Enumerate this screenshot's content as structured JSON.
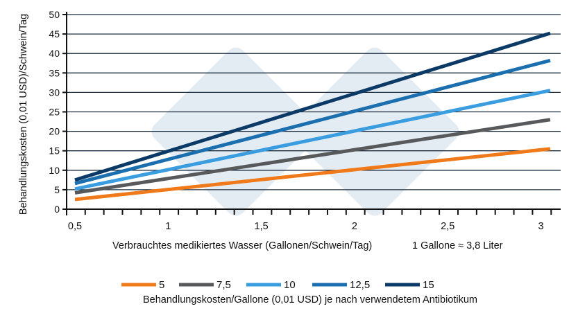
{
  "chart_data": {
    "type": "line",
    "title": "",
    "xlabel": "Verbrauchtes medikiertes Wasser (Gallonen/Schwein/Tag)",
    "xnote": "1 Gallone ≈ 3,8 Liter",
    "ylabel": "Behandlungskosten (0,01 USD)/Schwein/Tag",
    "xlim": [
      0.5,
      3.1
    ],
    "ylim": [
      0,
      50
    ],
    "x_ticks": [
      {
        "v": 0.5,
        "label": "0,5"
      },
      {
        "v": 1,
        "label": "1"
      },
      {
        "v": 1.5,
        "label": "1,5"
      },
      {
        "v": 2,
        "label": "2"
      },
      {
        "v": 2.5,
        "label": "2,5"
      },
      {
        "v": 3,
        "label": "3"
      }
    ],
    "y_ticks": [
      0,
      5,
      10,
      15,
      20,
      25,
      30,
      35,
      40,
      45,
      50
    ],
    "grid": "horizontal",
    "legend_position": "bottom",
    "legend_title": "Behandlungskosten/Gallone (0,01 USD) je nach verwendetem Antibiotikum",
    "series": [
      {
        "name": "5",
        "color": "#f07a1a",
        "x": [
          0.5,
          3.05
        ],
        "y": [
          2.5,
          15.5
        ]
      },
      {
        "name": "7,5",
        "color": "#58595b",
        "x": [
          0.5,
          3.05
        ],
        "y": [
          4.2,
          23
        ]
      },
      {
        "name": "10",
        "color": "#3a9de0",
        "x": [
          0.5,
          3.05
        ],
        "y": [
          5.2,
          30.5
        ]
      },
      {
        "name": "12,5",
        "color": "#1b6fae",
        "x": [
          0.5,
          3.05
        ],
        "y": [
          6.6,
          38.2
        ]
      },
      {
        "name": "15",
        "color": "#0b3a66",
        "x": [
          0.5,
          3.05
        ],
        "y": [
          7.5,
          45.2
        ]
      }
    ]
  }
}
